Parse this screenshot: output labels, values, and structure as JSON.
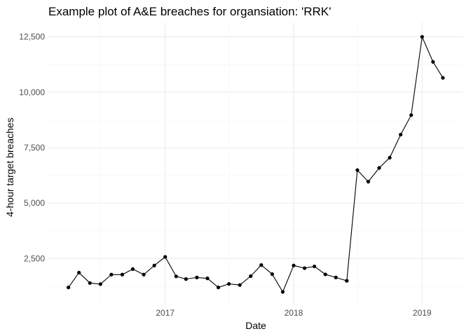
{
  "chart_data": {
    "type": "line",
    "title": "Example plot of A&E breaches for organsiation: 'RRK'",
    "xlabel": "Date",
    "ylabel": "4-hour target breaches",
    "x_tick_labels": [
      "2017",
      "2018",
      "2019"
    ],
    "y_tick_labels": [
      "2,500",
      "5,000",
      "7,500",
      "10,000",
      "12,500"
    ],
    "xlim": [
      "2016-02-04",
      "2019-04-26"
    ],
    "ylim": [
      400,
      13150
    ],
    "grid": true,
    "legend": "none",
    "markers": true,
    "series": [
      {
        "color": "#000000",
        "points": [
          {
            "x": "2016-04-01",
            "y": 1200
          },
          {
            "x": "2016-05-01",
            "y": 1870
          },
          {
            "x": "2016-06-01",
            "y": 1400
          },
          {
            "x": "2016-07-01",
            "y": 1350
          },
          {
            "x": "2016-08-01",
            "y": 1780
          },
          {
            "x": "2016-09-01",
            "y": 1780
          },
          {
            "x": "2016-10-01",
            "y": 2030
          },
          {
            "x": "2016-11-01",
            "y": 1780
          },
          {
            "x": "2016-12-01",
            "y": 2190
          },
          {
            "x": "2017-01-01",
            "y": 2580
          },
          {
            "x": "2017-02-01",
            "y": 1700
          },
          {
            "x": "2017-03-01",
            "y": 1580
          },
          {
            "x": "2017-04-01",
            "y": 1650
          },
          {
            "x": "2017-05-01",
            "y": 1610
          },
          {
            "x": "2017-06-01",
            "y": 1200
          },
          {
            "x": "2017-07-01",
            "y": 1360
          },
          {
            "x": "2017-08-01",
            "y": 1310
          },
          {
            "x": "2017-09-01",
            "y": 1710
          },
          {
            "x": "2017-10-01",
            "y": 2210
          },
          {
            "x": "2017-11-01",
            "y": 1800
          },
          {
            "x": "2017-12-01",
            "y": 1000
          },
          {
            "x": "2018-01-01",
            "y": 2190
          },
          {
            "x": "2018-02-01",
            "y": 2070
          },
          {
            "x": "2018-03-01",
            "y": 2150
          },
          {
            "x": "2018-04-01",
            "y": 1790
          },
          {
            "x": "2018-05-01",
            "y": 1650
          },
          {
            "x": "2018-06-01",
            "y": 1500
          },
          {
            "x": "2018-07-01",
            "y": 6490
          },
          {
            "x": "2018-08-01",
            "y": 5970
          },
          {
            "x": "2018-09-01",
            "y": 6590
          },
          {
            "x": "2018-10-01",
            "y": 7050
          },
          {
            "x": "2018-11-01",
            "y": 8090
          },
          {
            "x": "2018-12-01",
            "y": 8970
          },
          {
            "x": "2019-01-01",
            "y": 12500
          },
          {
            "x": "2019-02-01",
            "y": 11370
          },
          {
            "x": "2019-03-01",
            "y": 10650
          }
        ]
      }
    ]
  }
}
